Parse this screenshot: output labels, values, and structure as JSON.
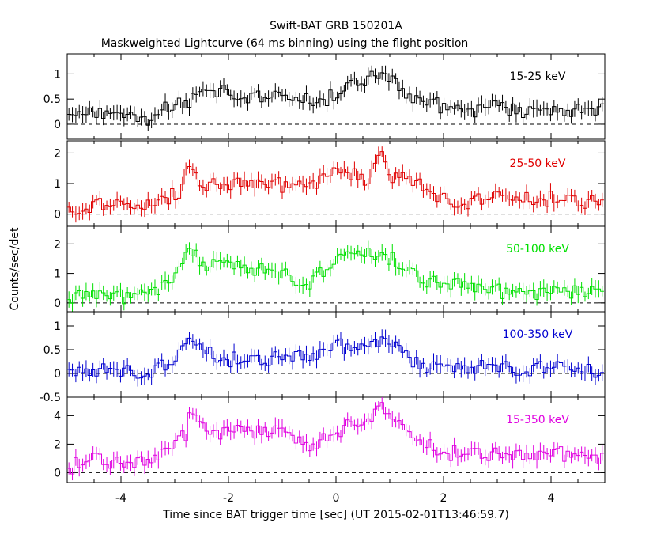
{
  "chart_data": {
    "type": "line",
    "title": "Swift-BAT GRB 150201A",
    "subtitle": "Maskweighted Lightcurve (64 ms binning) using the flight position",
    "xlabel": "Time since BAT trigger time [sec] (UT 2015-02-01T13:46:59.7)",
    "ylabel": "Counts/sec/det",
    "xlim": [
      -5,
      5
    ],
    "x_ticks": [
      "-4",
      "-2",
      "0",
      "2",
      "4"
    ],
    "bin_width": 0.064,
    "grid": false,
    "panels": [
      {
        "name": "15-25 keV",
        "color": "#000000",
        "ylim": [
          -0.3,
          1.4
        ],
        "y_ticks": [
          "0",
          "0.5",
          "1"
        ],
        "anchors": [
          [
            -5,
            0.05
          ],
          [
            -4.6,
            0.2
          ],
          [
            -4,
            0.12
          ],
          [
            -3.5,
            0.12
          ],
          [
            -3.2,
            0.38
          ],
          [
            -2.8,
            0.45
          ],
          [
            -2.5,
            0.6
          ],
          [
            -2,
            0.68
          ],
          [
            -1.5,
            0.52
          ],
          [
            -1,
            0.5
          ],
          [
            -0.5,
            0.45
          ],
          [
            0,
            0.55
          ],
          [
            0.4,
            0.85
          ],
          [
            0.9,
            1.0
          ],
          [
            1.3,
            0.55
          ],
          [
            2,
            0.35
          ],
          [
            2.5,
            0.25
          ],
          [
            3,
            0.35
          ],
          [
            3.5,
            0.2
          ],
          [
            4,
            0.25
          ],
          [
            4.5,
            0.25
          ],
          [
            5,
            0.3
          ]
        ]
      },
      {
        "name": "25-50 keV",
        "color": "#e00000",
        "ylim": [
          -0.4,
          2.4
        ],
        "y_ticks": [
          "0",
          "1",
          "2"
        ],
        "anchors": [
          [
            -5,
            0.2
          ],
          [
            -4.5,
            0.3
          ],
          [
            -4,
            0.2
          ],
          [
            -3.5,
            0.2
          ],
          [
            -3.3,
            0.55
          ],
          [
            -2.9,
            0.6
          ],
          [
            -2.8,
            1.5
          ],
          [
            -2.5,
            1.0
          ],
          [
            -2,
            0.9
          ],
          [
            -1.5,
            1.0
          ],
          [
            -1,
            0.95
          ],
          [
            -0.5,
            0.95
          ],
          [
            0,
            1.3
          ],
          [
            0.3,
            1.3
          ],
          [
            0.6,
            1.0
          ],
          [
            0.85,
            2.0
          ],
          [
            1.0,
            1.1
          ],
          [
            1.3,
            1.3
          ],
          [
            1.7,
            0.7
          ],
          [
            2,
            0.5
          ],
          [
            2.5,
            0.4
          ],
          [
            3,
            0.5
          ],
          [
            3.5,
            0.45
          ],
          [
            4,
            0.5
          ],
          [
            4.5,
            0.4
          ],
          [
            5,
            0.4
          ]
        ]
      },
      {
        "name": "50-100 keV",
        "color": "#00e000",
        "ylim": [
          -0.3,
          2.6
        ],
        "y_ticks": [
          "0",
          "1",
          "2"
        ],
        "anchors": [
          [
            -5,
            0.05
          ],
          [
            -4.5,
            0.3
          ],
          [
            -4,
            0.2
          ],
          [
            -3.5,
            0.35
          ],
          [
            -3,
            0.7
          ],
          [
            -2.7,
            1.9
          ],
          [
            -2.5,
            1.2
          ],
          [
            -2,
            1.3
          ],
          [
            -1.5,
            1.1
          ],
          [
            -1,
            1.0
          ],
          [
            -0.5,
            0.7
          ],
          [
            0,
            1.3
          ],
          [
            0.3,
            1.7
          ],
          [
            0.6,
            1.6
          ],
          [
            0.9,
            1.7
          ],
          [
            1.2,
            1.2
          ],
          [
            1.6,
            0.8
          ],
          [
            2,
            0.6
          ],
          [
            2.5,
            0.55
          ],
          [
            3,
            0.4
          ],
          [
            3.5,
            0.35
          ],
          [
            4,
            0.3
          ],
          [
            4.5,
            0.35
          ],
          [
            5,
            0.3
          ]
        ]
      },
      {
        "name": "100-350 keV",
        "color": "#0000d0",
        "ylim": [
          -0.5,
          1.3
        ],
        "y_ticks": [
          "-0.5",
          "0",
          "0.5",
          "1"
        ],
        "anchors": [
          [
            -5,
            0.0
          ],
          [
            -4.5,
            0.05
          ],
          [
            -4,
            0.05
          ],
          [
            -3.5,
            0.05
          ],
          [
            -3,
            0.2
          ],
          [
            -2.7,
            0.7
          ],
          [
            -2.3,
            0.35
          ],
          [
            -2,
            0.3
          ],
          [
            -1.5,
            0.25
          ],
          [
            -1,
            0.35
          ],
          [
            -0.5,
            0.3
          ],
          [
            0,
            0.6
          ],
          [
            0.4,
            0.5
          ],
          [
            0.8,
            0.7
          ],
          [
            1.2,
            0.45
          ],
          [
            1.6,
            0.1
          ],
          [
            2,
            0.1
          ],
          [
            2.5,
            0.1
          ],
          [
            3,
            0.15
          ],
          [
            3.5,
            0.1
          ],
          [
            4,
            0.1
          ],
          [
            4.5,
            0.05
          ],
          [
            5,
            0.0
          ]
        ]
      },
      {
        "name": "15-350 keV",
        "color": "#e000e0",
        "ylim": [
          -0.7,
          5.3
        ],
        "y_ticks": [
          "0",
          "2",
          "4"
        ],
        "anchors": [
          [
            -5,
            0.3
          ],
          [
            -4.5,
            1.0
          ],
          [
            -4,
            0.6
          ],
          [
            -3.5,
            0.6
          ],
          [
            -3.2,
            1.5
          ],
          [
            -3,
            2.0
          ],
          [
            -2.8,
            2.6
          ],
          [
            -2.7,
            4.5
          ],
          [
            -2.4,
            2.8
          ],
          [
            -2,
            2.8
          ],
          [
            -1.5,
            2.8
          ],
          [
            -1,
            2.8
          ],
          [
            -0.5,
            1.8
          ],
          [
            0,
            2.6
          ],
          [
            0.3,
            3.6
          ],
          [
            0.6,
            4.0
          ],
          [
            0.9,
            4.5
          ],
          [
            1.2,
            3.0
          ],
          [
            1.6,
            2.0
          ],
          [
            2,
            1.4
          ],
          [
            2.5,
            1.3
          ],
          [
            3,
            1.3
          ],
          [
            3.5,
            1.0
          ],
          [
            4,
            1.4
          ],
          [
            4.5,
            1.2
          ],
          [
            5,
            1.0
          ]
        ]
      }
    ]
  }
}
